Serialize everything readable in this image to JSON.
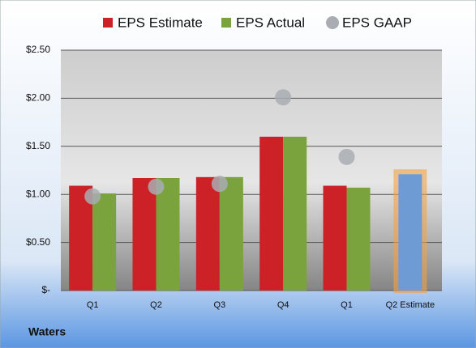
{
  "chart_data": {
    "type": "bar",
    "categories": [
      "Q1",
      "Q2",
      "Q3",
      "Q4",
      "Q1",
      "Q2 Estimate"
    ],
    "series": [
      {
        "name": "EPS Estimate",
        "color": "#cc2127",
        "values": [
          1.09,
          1.17,
          1.18,
          1.6,
          1.09,
          1.21
        ],
        "point_colors": [
          "#cc2127",
          "#cc2127",
          "#cc2127",
          "#cc2127",
          "#cc2127",
          "#6f9bd4"
        ],
        "highlight_color": "#f5a040"
      },
      {
        "name": "EPS Actual",
        "color": "#7aa33e",
        "values": [
          1.01,
          1.17,
          1.18,
          1.6,
          1.07,
          null
        ]
      },
      {
        "name": "EPS GAAP",
        "color": "#a9adb3",
        "marker": "circle",
        "values": [
          0.98,
          1.08,
          1.11,
          2.01,
          1.39,
          null
        ]
      }
    ],
    "ylim": [
      0,
      2.5
    ],
    "yticks": [
      {
        "value": 0,
        "label": "$-"
      },
      {
        "value": 0.5,
        "label": "$0.50"
      },
      {
        "value": 1,
        "label": "$1.00"
      },
      {
        "value": 1.5,
        "label": "$1.50"
      },
      {
        "value": 2,
        "label": "$2.00"
      },
      {
        "value": 2.5,
        "label": "$2.50"
      }
    ],
    "grid": true,
    "footer": "Waters"
  }
}
